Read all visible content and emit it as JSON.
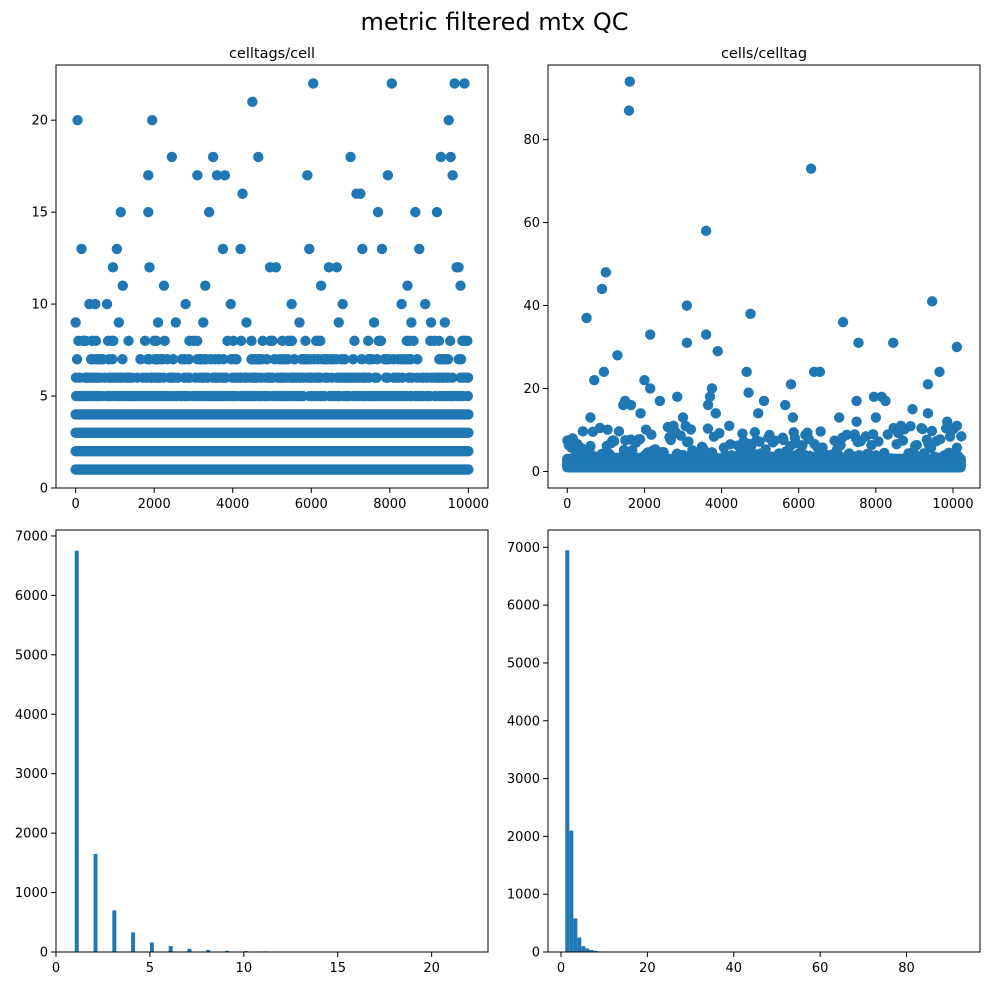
{
  "figure": {
    "suptitle": "metric filtered mtx QC",
    "point_color": "#1f77b4"
  },
  "chart_data": [
    {
      "type": "scatter",
      "title": "celltags/cell",
      "xlabel": "",
      "ylabel": "",
      "xlim": [
        -500,
        10500
      ],
      "ylim": [
        0,
        23
      ],
      "xticks": [
        0,
        2000,
        4000,
        6000,
        8000,
        10000
      ],
      "yticks": [
        0,
        5,
        10,
        15,
        20
      ],
      "n_points": 10000,
      "dense_levels": [
        1,
        2,
        3,
        4,
        5,
        6,
        7,
        8
      ],
      "outliers": [
        {
          "x": 50,
          "y": 20
        },
        {
          "x": 150,
          "y": 13
        },
        {
          "x": 200,
          "y": 8
        },
        {
          "x": 1050,
          "y": 13
        },
        {
          "x": 1150,
          "y": 15
        },
        {
          "x": 1850,
          "y": 17
        },
        {
          "x": 1950,
          "y": 20
        },
        {
          "x": 1850,
          "y": 15
        },
        {
          "x": 1880,
          "y": 12
        },
        {
          "x": 2450,
          "y": 18
        },
        {
          "x": 3100,
          "y": 17
        },
        {
          "x": 3400,
          "y": 15
        },
        {
          "x": 3500,
          "y": 18
        },
        {
          "x": 3600,
          "y": 17
        },
        {
          "x": 3800,
          "y": 17
        },
        {
          "x": 3750,
          "y": 13
        },
        {
          "x": 4200,
          "y": 13
        },
        {
          "x": 4250,
          "y": 16
        },
        {
          "x": 4500,
          "y": 21
        },
        {
          "x": 4650,
          "y": 18
        },
        {
          "x": 5900,
          "y": 17
        },
        {
          "x": 5950,
          "y": 13
        },
        {
          "x": 6050,
          "y": 22
        },
        {
          "x": 7000,
          "y": 18
        },
        {
          "x": 7150,
          "y": 16
        },
        {
          "x": 7250,
          "y": 16
        },
        {
          "x": 7300,
          "y": 13
        },
        {
          "x": 7700,
          "y": 15
        },
        {
          "x": 7800,
          "y": 13
        },
        {
          "x": 7950,
          "y": 17
        },
        {
          "x": 8050,
          "y": 22
        },
        {
          "x": 8650,
          "y": 15
        },
        {
          "x": 8750,
          "y": 13
        },
        {
          "x": 9200,
          "y": 15
        },
        {
          "x": 9300,
          "y": 18
        },
        {
          "x": 9500,
          "y": 20
        },
        {
          "x": 9550,
          "y": 18
        },
        {
          "x": 9600,
          "y": 17
        },
        {
          "x": 9650,
          "y": 22
        },
        {
          "x": 9900,
          "y": 22
        },
        {
          "x": 9700,
          "y": 12
        },
        {
          "x": 9750,
          "y": 12
        },
        {
          "x": 9800,
          "y": 11
        },
        {
          "x": 350,
          "y": 10
        },
        {
          "x": 500,
          "y": 10
        },
        {
          "x": 800,
          "y": 10
        },
        {
          "x": 950,
          "y": 12
        },
        {
          "x": 1200,
          "y": 11
        },
        {
          "x": 2250,
          "y": 11
        },
        {
          "x": 2800,
          "y": 10
        },
        {
          "x": 3300,
          "y": 11
        },
        {
          "x": 3950,
          "y": 10
        },
        {
          "x": 4950,
          "y": 12
        },
        {
          "x": 5100,
          "y": 12
        },
        {
          "x": 5500,
          "y": 10
        },
        {
          "x": 6250,
          "y": 11
        },
        {
          "x": 6450,
          "y": 12
        },
        {
          "x": 6650,
          "y": 12
        },
        {
          "x": 6800,
          "y": 10
        },
        {
          "x": 8300,
          "y": 10
        },
        {
          "x": 8450,
          "y": 11
        },
        {
          "x": 8900,
          "y": 10
        },
        {
          "x": 9050,
          "y": 9
        },
        {
          "x": 0,
          "y": 9
        },
        {
          "x": 1100,
          "y": 9
        },
        {
          "x": 2100,
          "y": 9
        },
        {
          "x": 2550,
          "y": 9
        },
        {
          "x": 3250,
          "y": 9
        },
        {
          "x": 4350,
          "y": 9
        },
        {
          "x": 5700,
          "y": 9
        },
        {
          "x": 6700,
          "y": 9
        },
        {
          "x": 7600,
          "y": 9
        },
        {
          "x": 8550,
          "y": 9
        },
        {
          "x": 9400,
          "y": 9
        }
      ]
    },
    {
      "type": "scatter",
      "title": "cells/celltag",
      "xlabel": "",
      "ylabel": "",
      "xlim": [
        -500,
        10700
      ],
      "ylim": [
        -4,
        98
      ],
      "xticks": [
        0,
        2000,
        4000,
        6000,
        8000,
        10000
      ],
      "yticks": [
        0,
        20,
        40,
        60,
        80
      ],
      "n_points": 10200,
      "dense_band_max": 6,
      "outliers": [
        {
          "x": 1620,
          "y": 94
        },
        {
          "x": 1600,
          "y": 87
        },
        {
          "x": 6320,
          "y": 73
        },
        {
          "x": 3600,
          "y": 58
        },
        {
          "x": 1000,
          "y": 48
        },
        {
          "x": 900,
          "y": 44
        },
        {
          "x": 9460,
          "y": 41
        },
        {
          "x": 3100,
          "y": 40
        },
        {
          "x": 4750,
          "y": 38
        },
        {
          "x": 500,
          "y": 37
        },
        {
          "x": 7150,
          "y": 36
        },
        {
          "x": 3600,
          "y": 33
        },
        {
          "x": 2150,
          "y": 33
        },
        {
          "x": 3100,
          "y": 31
        },
        {
          "x": 7550,
          "y": 31
        },
        {
          "x": 8450,
          "y": 31
        },
        {
          "x": 10100,
          "y": 30
        },
        {
          "x": 3900,
          "y": 29
        },
        {
          "x": 1300,
          "y": 28
        },
        {
          "x": 6400,
          "y": 24
        },
        {
          "x": 6550,
          "y": 24
        },
        {
          "x": 950,
          "y": 24
        },
        {
          "x": 4650,
          "y": 24
        },
        {
          "x": 9650,
          "y": 24
        },
        {
          "x": 700,
          "y": 22
        },
        {
          "x": 2000,
          "y": 22
        },
        {
          "x": 5800,
          "y": 21
        },
        {
          "x": 9350,
          "y": 21
        },
        {
          "x": 2150,
          "y": 20
        },
        {
          "x": 3750,
          "y": 20
        },
        {
          "x": 4700,
          "y": 19
        },
        {
          "x": 3700,
          "y": 18
        },
        {
          "x": 2850,
          "y": 18
        },
        {
          "x": 7950,
          "y": 18
        },
        {
          "x": 8150,
          "y": 18
        },
        {
          "x": 1500,
          "y": 17
        },
        {
          "x": 2400,
          "y": 17
        },
        {
          "x": 7500,
          "y": 17
        },
        {
          "x": 8250,
          "y": 17
        },
        {
          "x": 5100,
          "y": 17
        },
        {
          "x": 1450,
          "y": 16
        },
        {
          "x": 3650,
          "y": 16
        },
        {
          "x": 5650,
          "y": 16
        },
        {
          "x": 1650,
          "y": 16
        },
        {
          "x": 8950,
          "y": 15
        },
        {
          "x": 1900,
          "y": 14
        },
        {
          "x": 4950,
          "y": 14
        },
        {
          "x": 9350,
          "y": 14
        },
        {
          "x": 3850,
          "y": 14
        },
        {
          "x": 600,
          "y": 13
        },
        {
          "x": 3000,
          "y": 13
        },
        {
          "x": 5850,
          "y": 13
        },
        {
          "x": 7050,
          "y": 13
        },
        {
          "x": 8000,
          "y": 13
        },
        {
          "x": 7500,
          "y": 12
        },
        {
          "x": 9850,
          "y": 12
        },
        {
          "x": 8650,
          "y": 11
        },
        {
          "x": 10100,
          "y": 11
        },
        {
          "x": 4200,
          "y": 11
        },
        {
          "x": 2750,
          "y": 11
        }
      ]
    },
    {
      "type": "histogram",
      "title": "",
      "xlabel": "",
      "ylabel": "",
      "xlim": [
        0,
        23
      ],
      "ylim": [
        0,
        7100
      ],
      "xticks": [
        0,
        5,
        10,
        15,
        20
      ],
      "yticks": [
        0,
        1000,
        2000,
        3000,
        4000,
        5000,
        6000,
        7000
      ],
      "bins": [
        {
          "x": 1,
          "count": 6750
        },
        {
          "x": 2,
          "count": 1650
        },
        {
          "x": 3,
          "count": 700
        },
        {
          "x": 4,
          "count": 330
        },
        {
          "x": 5,
          "count": 160
        },
        {
          "x": 6,
          "count": 100
        },
        {
          "x": 7,
          "count": 55
        },
        {
          "x": 8,
          "count": 35
        },
        {
          "x": 9,
          "count": 20
        },
        {
          "x": 10,
          "count": 15
        },
        {
          "x": 11,
          "count": 10
        },
        {
          "x": 12,
          "count": 5
        },
        {
          "x": 13,
          "count": 4
        },
        {
          "x": 15,
          "count": 2
        },
        {
          "x": 16,
          "count": 1
        },
        {
          "x": 17,
          "count": 2
        },
        {
          "x": 18,
          "count": 2
        },
        {
          "x": 20,
          "count": 1
        },
        {
          "x": 21,
          "count": 1
        },
        {
          "x": 22,
          "count": 1
        }
      ],
      "bin_width": 0.21
    },
    {
      "type": "histogram",
      "title": "",
      "xlabel": "",
      "ylabel": "",
      "xlim": [
        -3,
        97
      ],
      "ylim": [
        0,
        7300
      ],
      "xticks": [
        0,
        20,
        40,
        60,
        80
      ],
      "yticks": [
        0,
        1000,
        2000,
        3000,
        4000,
        5000,
        6000,
        7000
      ],
      "bins": [
        {
          "x0": 1.0,
          "x1": 1.93,
          "count": 6950
        },
        {
          "x0": 1.93,
          "x1": 2.86,
          "count": 2100
        },
        {
          "x0": 2.86,
          "x1": 3.79,
          "count": 580
        },
        {
          "x0": 3.79,
          "x1": 4.72,
          "count": 250
        },
        {
          "x0": 4.72,
          "x1": 5.65,
          "count": 100
        },
        {
          "x0": 5.65,
          "x1": 6.58,
          "count": 60
        },
        {
          "x0": 6.58,
          "x1": 7.51,
          "count": 35
        },
        {
          "x0": 7.51,
          "x1": 8.44,
          "count": 20
        },
        {
          "x0": 8.44,
          "x1": 9.37,
          "count": 10
        },
        {
          "x0": 9.37,
          "x1": 10.3,
          "count": 6
        },
        {
          "x0": 10.3,
          "x1": 11.23,
          "count": 4
        },
        {
          "x0": 11.23,
          "x1": 12.16,
          "count": 3
        },
        {
          "x0": 12.16,
          "x1": 13.09,
          "count": 2
        },
        {
          "x0": 13.09,
          "x1": 14.02,
          "count": 2
        },
        {
          "x0": 16,
          "x1": 17,
          "count": 2
        },
        {
          "x0": 17,
          "x1": 18,
          "count": 3
        },
        {
          "x0": 20,
          "x1": 21,
          "count": 2
        },
        {
          "x0": 21,
          "x1": 22,
          "count": 1
        },
        {
          "x0": 23,
          "x1": 24,
          "count": 2
        },
        {
          "x0": 24,
          "x1": 25,
          "count": 1
        },
        {
          "x0": 28,
          "x1": 29,
          "count": 1
        },
        {
          "x0": 29,
          "x1": 30,
          "count": 1
        },
        {
          "x0": 30,
          "x1": 31,
          "count": 3
        },
        {
          "x0": 33,
          "x1": 34,
          "count": 2
        },
        {
          "x0": 36,
          "x1": 37,
          "count": 1
        },
        {
          "x0": 37,
          "x1": 38,
          "count": 1
        },
        {
          "x0": 38,
          "x1": 39,
          "count": 1
        },
        {
          "x0": 40,
          "x1": 41,
          "count": 2
        },
        {
          "x0": 44,
          "x1": 45,
          "count": 1
        },
        {
          "x0": 48,
          "x1": 49,
          "count": 1
        },
        {
          "x0": 58,
          "x1": 59,
          "count": 1
        },
        {
          "x0": 73,
          "x1": 74,
          "count": 1
        },
        {
          "x0": 87,
          "x1": 88,
          "count": 1
        },
        {
          "x0": 94,
          "x1": 95,
          "count": 1
        }
      ]
    }
  ]
}
